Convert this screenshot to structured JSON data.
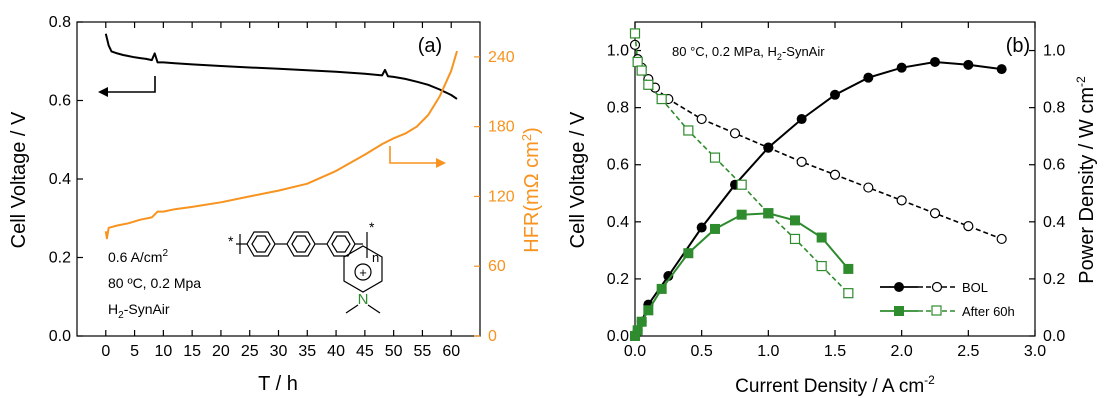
{
  "chart_data": [
    {
      "panel": "(a)",
      "type": "line",
      "xlabel": "T / h",
      "ylabel_left": "Cell Voltage / V",
      "ylabel_right": "HFR(mΩ cm²)",
      "xlim": [
        -5,
        65
      ],
      "ylim_left": [
        0.0,
        0.8
      ],
      "ylim_right": [
        0,
        270
      ],
      "xticks": [
        "0",
        "5",
        "10",
        "15",
        "20",
        "25",
        "30",
        "35",
        "40",
        "45",
        "50",
        "55",
        "60"
      ],
      "yticks_left": [
        "0.0",
        "0.2",
        "0.4",
        "0.6",
        "0.8"
      ],
      "yticks_right": [
        "0",
        "60",
        "120",
        "180",
        "240"
      ],
      "grid": false,
      "annotations": [
        "0.6 A/cm²",
        "80 ºC, 0.2 Mpa",
        "H₂-SynAir"
      ],
      "colors": {
        "voltage": "#000000",
        "hfr": "#f7931e"
      },
      "series": [
        {
          "axis": "left",
          "color": "#000000",
          "x": [
            0,
            0.5,
            1,
            2,
            3,
            4,
            5,
            6,
            7,
            8,
            8.5,
            9,
            10,
            12,
            15,
            20,
            25,
            30,
            35,
            40,
            45,
            48,
            48.5,
            49,
            50,
            52,
            54,
            56,
            58,
            60,
            61
          ],
          "y": [
            0.77,
            0.74,
            0.725,
            0.72,
            0.716,
            0.713,
            0.71,
            0.708,
            0.706,
            0.703,
            0.72,
            0.697,
            0.697,
            0.695,
            0.692,
            0.688,
            0.684,
            0.681,
            0.677,
            0.673,
            0.668,
            0.664,
            0.678,
            0.662,
            0.66,
            0.655,
            0.648,
            0.64,
            0.628,
            0.614,
            0.604
          ]
        },
        {
          "axis": "right",
          "color": "#f7931e",
          "x": [
            0,
            0.2,
            0.5,
            2,
            4,
            6,
            8,
            9,
            10,
            12,
            15,
            20,
            25,
            30,
            35,
            40,
            45,
            48,
            50,
            52,
            54,
            56,
            58,
            60,
            61
          ],
          "y": [
            90,
            84,
            93,
            95,
            97,
            100,
            102,
            107,
            107,
            109,
            111,
            115,
            120,
            125,
            131,
            142,
            156,
            165,
            170,
            174,
            180,
            190,
            206,
            228,
            245
          ]
        }
      ]
    },
    {
      "panel": "(b)",
      "type": "line",
      "xlabel": "Current Density / A cm⁻²",
      "ylabel_left": "Cell Voltage / V",
      "ylabel_right": "Power Density / W cm⁻²",
      "title": "80 °C, 0.2 MPa, H₂-SynAir",
      "xlim": [
        0.0,
        3.0
      ],
      "ylim_left": [
        0.0,
        1.1
      ],
      "ylim_right": [
        0.0,
        1.1
      ],
      "xticks": [
        "0.0",
        "0.5",
        "1.0",
        "1.5",
        "2.0",
        "2.5",
        "3.0"
      ],
      "yticks_left": [
        "0.0",
        "0.2",
        "0.4",
        "0.6",
        "0.8",
        "1.0"
      ],
      "yticks_right": [
        "0.0",
        "0.2",
        "0.4",
        "0.6",
        "0.8",
        "1.0"
      ],
      "grid": false,
      "legend": [
        "BOL",
        "After 60h"
      ],
      "legend_placement": "bottom-right",
      "colors": {
        "bol": "#000000",
        "after": "#2e8b2e"
      },
      "series": [
        {
          "name": "BOL",
          "quantity": "voltage",
          "color": "#000000",
          "marker": "open-circle",
          "dashed": true,
          "x": [
            0.0,
            0.02,
            0.05,
            0.1,
            0.15,
            0.25,
            0.5,
            0.75,
            1.0,
            1.25,
            1.5,
            1.75,
            2.0,
            2.25,
            2.5,
            2.75
          ],
          "y": [
            1.02,
            0.97,
            0.94,
            0.9,
            0.87,
            0.83,
            0.76,
            0.71,
            0.66,
            0.61,
            0.565,
            0.52,
            0.475,
            0.43,
            0.385,
            0.34
          ]
        },
        {
          "name": "BOL",
          "quantity": "power",
          "color": "#000000",
          "marker": "filled-circle",
          "dashed": false,
          "x": [
            0.0,
            0.02,
            0.05,
            0.1,
            0.25,
            0.5,
            0.75,
            1.0,
            1.25,
            1.5,
            1.75,
            2.0,
            2.25,
            2.5,
            2.75
          ],
          "y": [
            0.0,
            0.02,
            0.05,
            0.11,
            0.21,
            0.38,
            0.53,
            0.66,
            0.76,
            0.845,
            0.905,
            0.94,
            0.96,
            0.95,
            0.935
          ]
        },
        {
          "name": "After 60h",
          "quantity": "voltage",
          "color": "#2e8b2e",
          "marker": "open-square",
          "dashed": true,
          "x": [
            0.0,
            0.02,
            0.05,
            0.1,
            0.2,
            0.4,
            0.6,
            0.8,
            1.0,
            1.2,
            1.4,
            1.6
          ],
          "y": [
            1.06,
            0.96,
            0.93,
            0.88,
            0.83,
            0.72,
            0.625,
            0.53,
            0.43,
            0.34,
            0.245,
            0.15
          ]
        },
        {
          "name": "After 60h",
          "quantity": "power",
          "color": "#2e8b2e",
          "marker": "filled-square",
          "dashed": false,
          "x": [
            0.0,
            0.02,
            0.05,
            0.1,
            0.2,
            0.4,
            0.6,
            0.8,
            1.0,
            1.2,
            1.4,
            1.6
          ],
          "y": [
            0.0,
            0.02,
            0.05,
            0.09,
            0.165,
            0.29,
            0.375,
            0.425,
            0.43,
            0.405,
            0.345,
            0.235
          ]
        }
      ]
    }
  ],
  "panel_a": {
    "label": "(a)",
    "xlabel": "T / h",
    "ylabel_left": "Cell Voltage / V",
    "ylabel_right": "HFR(mΩ cm",
    "ylabel_right_sup": "2",
    "ylabel_right_close": ")",
    "cond_line1": "0.6 A/cm",
    "cond_line1_sup": "2",
    "cond_line2": "80 ºC, 0.2 Mpa",
    "cond_line3_main": "H",
    "cond_line3_sub": "2",
    "cond_line3_rest": "-SynAir",
    "struct_star_left": "*",
    "struct_star_right": "*",
    "struct_n": "n",
    "struct_plus": "+",
    "struct_N": "N"
  },
  "panel_b": {
    "label": "(b)",
    "title_main": "80 °C, 0.2 MPa, H",
    "title_sub": "2",
    "title_rest": "-SynAir",
    "xlabel_main": "Current Density / A cm",
    "xlabel_sup": "-2",
    "ylabel_left": "Cell Voltage / V",
    "ylabel_right_main": "Power Density / W cm",
    "ylabel_right_sup": "-2",
    "legend_bol": "BOL",
    "legend_after": "After 60h"
  }
}
